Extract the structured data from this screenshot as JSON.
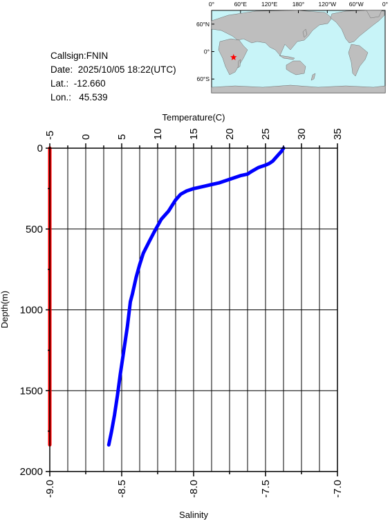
{
  "station": {
    "callsign_label": "Callsign:",
    "callsign": "FNIN",
    "date_label": "Date:",
    "date": "2025/10/05 18:22(UTC)",
    "lat_label": "Lat.:",
    "lat": "-12.660",
    "lon_label": "Lon.:",
    "lon": "45.539"
  },
  "map": {
    "lon_labels": [
      "0°",
      "60°E",
      "120°E",
      "180°",
      "120°W",
      "60°W",
      "0°"
    ],
    "lat_labels": [
      "60°N",
      "0°",
      "60°S"
    ],
    "marker_color": "#ff0000",
    "ocean_color": "#c8f4f8",
    "land_color": "#bebebe"
  },
  "chart_data": {
    "type": "line",
    "title": "",
    "y_axis": {
      "label": "Depth(m)",
      "range": [
        0,
        2000
      ],
      "inverted": true,
      "ticks": [
        0,
        500,
        1000,
        1500,
        2000
      ]
    },
    "x_axis_top": {
      "label": "Temperature(C)",
      "range": [
        -5,
        35
      ],
      "ticks": [
        -5,
        0,
        5,
        10,
        15,
        20,
        25,
        30,
        35
      ]
    },
    "x_axis_bottom": {
      "label": "Salinity",
      "range": [
        -9.0,
        -7.0
      ],
      "ticks": [
        "-9.0",
        "-8.5",
        "-8.0",
        "-7.5",
        "-7.0"
      ]
    },
    "grid": true,
    "series": [
      {
        "axis": "temperature",
        "color": "#0000ff",
        "points": [
          [
            27.5,
            0
          ],
          [
            27.2,
            20
          ],
          [
            26.8,
            40
          ],
          [
            26.5,
            55
          ],
          [
            26.0,
            80
          ],
          [
            25.5,
            95
          ],
          [
            25.0,
            105
          ],
          [
            24.0,
            120
          ],
          [
            23.0,
            145
          ],
          [
            22.5,
            160
          ],
          [
            21.5,
            170
          ],
          [
            20.5,
            185
          ],
          [
            19.5,
            200
          ],
          [
            18.5,
            215
          ],
          [
            17.5,
            225
          ],
          [
            16.5,
            235
          ],
          [
            15.0,
            250
          ],
          [
            14.0,
            265
          ],
          [
            13.2,
            285
          ],
          [
            12.5,
            320
          ],
          [
            12.0,
            355
          ],
          [
            11.5,
            390
          ],
          [
            10.5,
            440
          ],
          [
            10.0,
            480
          ],
          [
            9.5,
            520
          ],
          [
            8.8,
            580
          ],
          [
            8.0,
            650
          ],
          [
            7.5,
            720
          ],
          [
            7.0,
            800
          ],
          [
            6.5,
            900
          ],
          [
            6.2,
            950
          ],
          [
            5.8,
            1100
          ],
          [
            5.3,
            1250
          ],
          [
            4.8,
            1400
          ],
          [
            4.4,
            1530
          ],
          [
            4.0,
            1650
          ],
          [
            3.6,
            1750
          ],
          [
            3.2,
            1835
          ]
        ]
      },
      {
        "axis": "salinity",
        "color": "#ff0000",
        "points": [
          [
            -9.0,
            0
          ],
          [
            -9.0,
            1835
          ]
        ]
      }
    ]
  }
}
